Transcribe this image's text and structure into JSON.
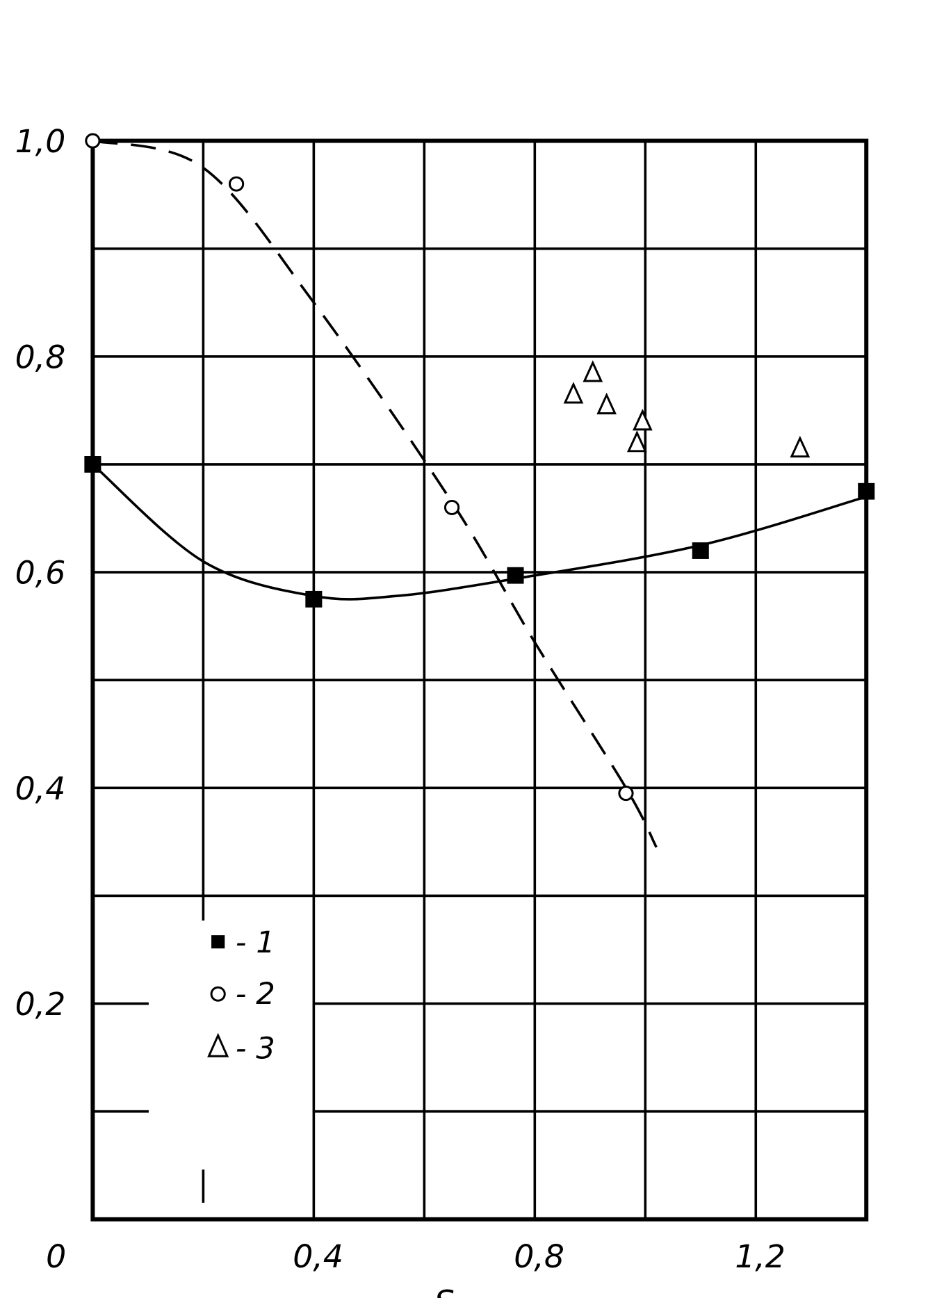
{
  "chart_data": {
    "type": "scatter",
    "title": "",
    "xlabel": "S",
    "ylabel": "",
    "xlim": [
      0,
      1.4
    ],
    "ylim": [
      0,
      1.0
    ],
    "grid": true,
    "x_ticks": [
      {
        "value": 0,
        "label": "0"
      },
      {
        "value": 0.4,
        "label": "0,4"
      },
      {
        "value": 0.8,
        "label": "0,8"
      },
      {
        "value": 1.2,
        "label": "1,2"
      }
    ],
    "y_ticks": [
      {
        "value": 0.2,
        "label": "0,2"
      },
      {
        "value": 0.4,
        "label": "0,4"
      },
      {
        "value": 0.6,
        "label": "0,6"
      },
      {
        "value": 0.8,
        "label": "0,8"
      },
      {
        "value": 1.0,
        "label": "1,0"
      }
    ],
    "legend_placement": "lower-left",
    "series": [
      {
        "name": "1",
        "marker": "filled-square",
        "line": "solid",
        "x": [
          0,
          0.4,
          0.765,
          1.1,
          1.4
        ],
        "y": [
          0.7,
          0.575,
          0.597,
          0.62,
          0.675
        ]
      },
      {
        "name": "2",
        "marker": "open-circle",
        "line": "dashed",
        "x": [
          0,
          0.26,
          0.65,
          0.965
        ],
        "y": [
          1.0,
          0.96,
          0.66,
          0.395
        ]
      },
      {
        "name": "3",
        "marker": "open-triangle",
        "line": "none",
        "x": [
          0.87,
          0.905,
          0.93,
          0.985,
          0.995,
          1.28
        ],
        "y": [
          0.765,
          0.785,
          0.755,
          0.72,
          0.74,
          0.715
        ]
      }
    ],
    "legend": [
      {
        "marker": "filled-square",
        "label": "- 1"
      },
      {
        "marker": "open-circle",
        "label": "- 2"
      },
      {
        "marker": "open-triangle",
        "label": "- 3"
      }
    ]
  }
}
